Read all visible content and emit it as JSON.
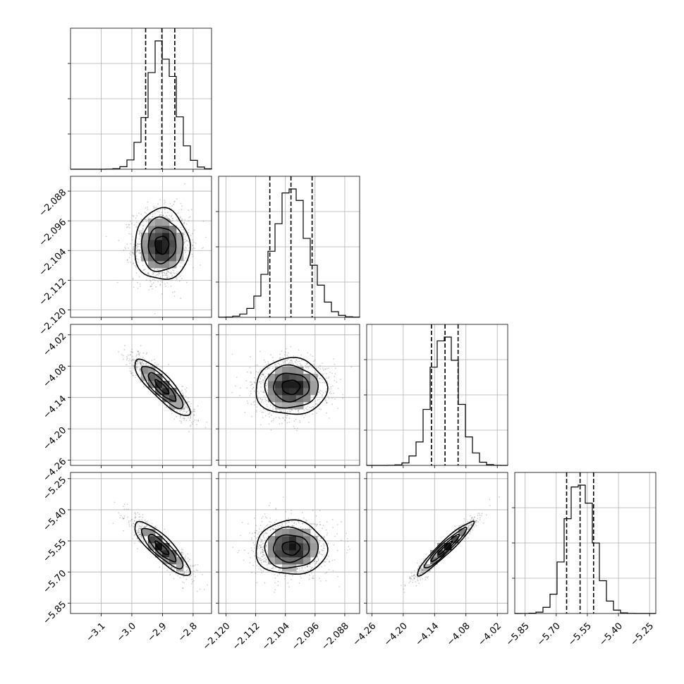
{
  "chart_data": {
    "type": "corner",
    "title": "",
    "grid": true,
    "quantile_lines": "dashed",
    "parameters": [
      {
        "range": [
          -3.2,
          -2.74
        ],
        "mean": -2.902,
        "sigma": 0.045,
        "quantiles": [
          -2.955,
          -2.902,
          -2.86
        ],
        "ticks": [
          -3.1,
          -3.0,
          -2.9,
          -2.8
        ],
        "tick_labels": [
          "−3.1",
          "−3.0",
          "−2.9",
          "−2.8"
        ]
      },
      {
        "range": [
          -2.122,
          -2.084
        ],
        "mean": -2.1025,
        "sigma": 0.0048,
        "quantiles": [
          -2.1082,
          -2.1025,
          -2.0968
        ],
        "ticks": [
          -2.12,
          -2.112,
          -2.104,
          -2.096,
          -2.088
        ],
        "tick_labels": [
          "−2.120",
          "−2.112",
          "−2.104",
          "−2.096",
          "−2.088"
        ]
      },
      {
        "range": [
          -4.27,
          -4.0
        ],
        "mean": -4.12,
        "sigma": 0.027,
        "quantiles": [
          -4.146,
          -4.12,
          -4.095
        ],
        "ticks": [
          -4.26,
          -4.2,
          -4.14,
          -4.08,
          -4.02
        ],
        "tick_labels": [
          "−4.26",
          "−4.20",
          "−4.14",
          "−4.08",
          "−4.02"
        ]
      },
      {
        "range": [
          -5.9,
          -5.22
        ],
        "mean": -5.585,
        "sigma": 0.065,
        "quantiles": [
          -5.65,
          -5.585,
          -5.52
        ],
        "ticks": [
          -5.85,
          -5.7,
          -5.55,
          -5.4,
          -5.25
        ],
        "tick_labels": [
          "−5.85",
          "−5.70",
          "−5.55",
          "−5.40",
          "−5.25"
        ]
      }
    ],
    "correlations": [
      [
        1.0,
        0.0,
        -0.85,
        -0.85
      ],
      [
        0.0,
        1.0,
        0.0,
        0.0
      ],
      [
        -0.85,
        0.0,
        1.0,
        0.95
      ],
      [
        -0.85,
        0.0,
        0.95,
        1.0
      ]
    ],
    "histogram_bins": 20,
    "contour_levels_sigma": [
      0.5,
      1.0,
      1.5,
      2.0
    ]
  }
}
